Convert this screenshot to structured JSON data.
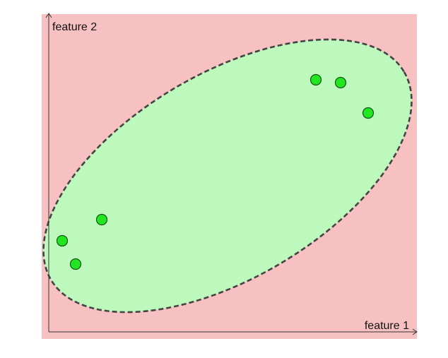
{
  "axes": {
    "x_label": "feature 1",
    "y_label": "feature 2"
  },
  "colors": {
    "outside_region": "#f8c1c1",
    "inside_region": "#bdf8bd",
    "boundary": "#444444",
    "point_fill": "#22e622",
    "point_stroke": "#115511",
    "axis": "#333333"
  },
  "boundary": {
    "shape": "ellipse",
    "line_style": "dashed"
  },
  "points_count": 6
}
